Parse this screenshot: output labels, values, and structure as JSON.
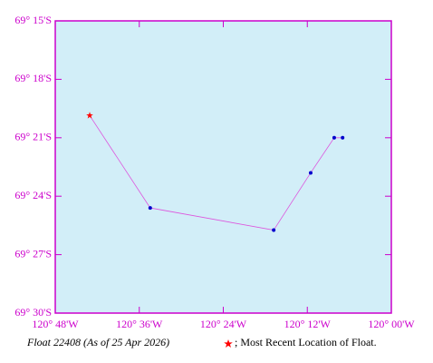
{
  "chart_data": {
    "type": "track",
    "x": [
      -120.116,
      -120.136,
      -120.192,
      -120.28,
      -120.574,
      -120.718
    ],
    "y": [
      -69.35,
      -69.35,
      -69.38,
      -69.429,
      -69.41,
      -69.331
    ],
    "xlim": [
      -120.8,
      -120.0
    ],
    "xticks": [
      {
        "value": -120.8,
        "label": "120° 48'W"
      },
      {
        "value": -120.6,
        "label": "120° 36'W"
      },
      {
        "value": -120.4,
        "label": "120° 24'W"
      },
      {
        "value": -120.2,
        "label": "120° 12'W"
      },
      {
        "value": -120.0,
        "label": "120° 00'W"
      }
    ],
    "ylim": [
      -69.5,
      -69.25
    ],
    "yticks": [
      {
        "value": -69.25,
        "label": "69° 15'S"
      },
      {
        "value": -69.3,
        "label": "69° 18'S"
      },
      {
        "value": -69.35,
        "label": "69° 21'S"
      },
      {
        "value": -69.4,
        "label": "69° 24'S"
      },
      {
        "value": -69.45,
        "label": "69° 27'S"
      },
      {
        "value": -69.5,
        "label": "69° 30'S"
      }
    ],
    "point_color": "#0000cc",
    "line_color": "#dd55dd",
    "latest_color": "#ff0000",
    "caption": "Float 22408 (As of 25 Apr 2026)",
    "legend_text": "; Most Recent Location of Float."
  }
}
